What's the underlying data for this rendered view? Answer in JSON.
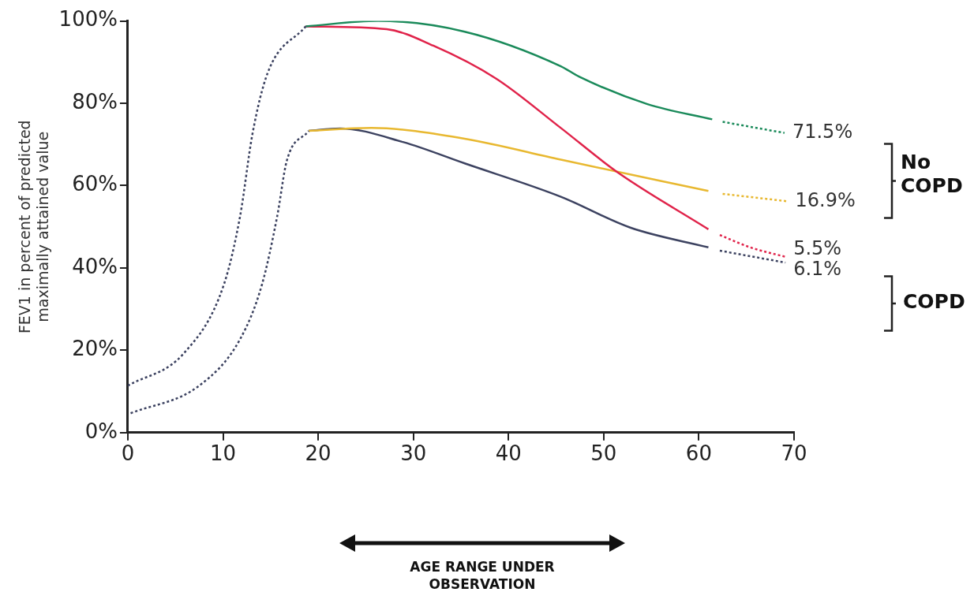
{
  "chart_data": {
    "type": "line",
    "ylabel": "FEV1 in percent of predicted\nmaximally attained value",
    "xlim": [
      0,
      70
    ],
    "xticks": [
      0,
      10,
      20,
      30,
      40,
      50,
      60,
      70
    ],
    "ylim": [
      0,
      100
    ],
    "yticks": [
      {
        "value": 0,
        "label": "0%"
      },
      {
        "value": 20,
        "label": "20%"
      },
      {
        "value": 40,
        "label": "40%"
      },
      {
        "value": 60,
        "label": "60%"
      },
      {
        "value": 80,
        "label": "80%"
      },
      {
        "value": 100,
        "label": "100%"
      }
    ],
    "grid": false,
    "legend": false,
    "marker": "none",
    "series": [
      {
        "color": "#3c4260",
        "line_style": "dotted",
        "x": [
          0,
          5.9,
          10.1,
          11.8,
          13.1,
          14.7,
          18.7
        ],
        "values": [
          11.4,
          19.3,
          36,
          52.6,
          72.6,
          87.4,
          98.7
        ]
      },
      {
        "color": "#3c4260",
        "line_style": "dotted",
        "x": [
          0.3,
          7.5,
          11.8,
          14.1,
          15.7,
          16.7,
          19
        ],
        "values": [
          4.7,
          11.4,
          22.7,
          36,
          52.6,
          66,
          73.3
        ]
      },
      {
        "color": "#1a8a5a",
        "line_style": "solid",
        "x": [
          18.7,
          26.3,
          35.4,
          45.5,
          47.4,
          54.6,
          61.4
        ],
        "values": [
          98.7,
          100,
          97.4,
          89,
          86.5,
          79.8,
          76.1
        ]
      },
      {
        "color": "#1a8a5a",
        "line_style": "dotted",
        "x": [
          62.5,
          69
        ],
        "values": [
          75.5,
          72.8
        ]
      },
      {
        "color": "#e0234a",
        "line_style": "solid",
        "x": [
          18.7,
          27.2,
          32.1,
          38.7,
          45.5,
          51.3,
          61
        ],
        "values": [
          98.7,
          98,
          94,
          86,
          74,
          63.5,
          49.4
        ]
      },
      {
        "color": "#e0234a",
        "line_style": "dotted",
        "x": [
          62.2,
          65.4,
          69.1
        ],
        "values": [
          48,
          45,
          42.7
        ]
      },
      {
        "color": "#e8b830",
        "line_style": "solid",
        "x": [
          19,
          25.6,
          35.4,
          45.5,
          61
        ],
        "values": [
          73.3,
          74,
          71.4,
          66.3,
          58.7
        ]
      },
      {
        "color": "#e8b830",
        "line_style": "dotted",
        "x": [
          62.5,
          69.3
        ],
        "values": [
          58,
          56.2
        ]
      },
      {
        "color": "#3c4260",
        "line_style": "solid",
        "x": [
          19,
          22.3,
          28.9,
          35.4,
          45.5,
          52.8,
          61
        ],
        "values": [
          73.3,
          73.9,
          70.6,
          65.4,
          57.3,
          49.8,
          45
        ]
      },
      {
        "color": "#3c4260",
        "line_style": "dotted",
        "x": [
          62.2,
          69.1
        ],
        "values": [
          44.2,
          41.3
        ]
      }
    ],
    "annotations": [
      {
        "text": "71.5%",
        "x": 69,
        "y": 72.8
      },
      {
        "text": "16.9%",
        "x": 69.3,
        "y": 56.2
      },
      {
        "text": "5.5%",
        "x": 69.1,
        "y": 42.7
      },
      {
        "text": "6.1%",
        "x": 69.1,
        "y": 41.3
      },
      "No\nCOPD",
      "COPD",
      "AGE RANGE UNDER\nOBSERVATION"
    ]
  }
}
